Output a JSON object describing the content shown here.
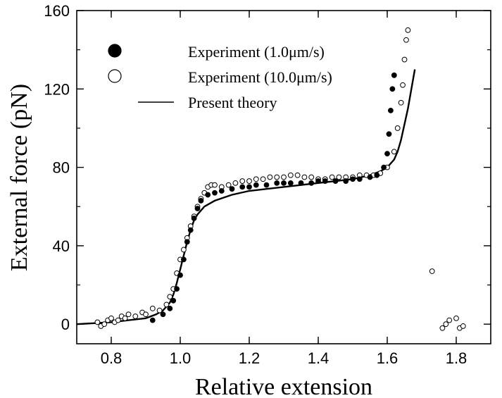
{
  "chart_data": {
    "type": "scatter",
    "xlabel": "Relative extension",
    "ylabel": "External force (pN)",
    "xlim": [
      0.7,
      1.9
    ],
    "ylim": [
      -10,
      160
    ],
    "x_ticks": [
      0.8,
      1.0,
      1.2,
      1.4,
      1.6,
      1.8
    ],
    "x_tick_labels": [
      "0.8",
      "1.0",
      "1.2",
      "1.4",
      "1.6",
      "1.8"
    ],
    "y_ticks": [
      0,
      40,
      80,
      120,
      160
    ],
    "y_tick_labels": [
      "0",
      "40",
      "80",
      "120",
      "160"
    ],
    "legend_position": "top-left",
    "series": [
      {
        "name": "Experiment (1.0μm/s)",
        "marker": "filled-circle",
        "color": "#000000",
        "x": [
          0.92,
          0.95,
          0.97,
          0.98,
          0.99,
          1.0,
          1.01,
          1.02,
          1.03,
          1.04,
          1.05,
          1.06,
          1.08,
          1.1,
          1.12,
          1.15,
          1.18,
          1.2,
          1.22,
          1.25,
          1.28,
          1.3,
          1.32,
          1.35,
          1.38,
          1.4,
          1.42,
          1.45,
          1.48,
          1.5,
          1.52,
          1.55,
          1.57,
          1.59,
          1.6,
          1.605,
          1.61,
          1.615,
          1.62
        ],
        "y": [
          2,
          5,
          8,
          12,
          18,
          25,
          33,
          42,
          48,
          54,
          59,
          63,
          66,
          67,
          68,
          69,
          70,
          70,
          71,
          71,
          72,
          72,
          72,
          72,
          72,
          73,
          73,
          73,
          73,
          74,
          74,
          75,
          76,
          80,
          87,
          97,
          109,
          120,
          127
        ]
      },
      {
        "name": "Experiment (10.0μm/s)",
        "marker": "open-circle",
        "color": "#000000",
        "x": [
          0.76,
          0.77,
          0.78,
          0.79,
          0.8,
          0.81,
          0.82,
          0.83,
          0.84,
          0.85,
          0.87,
          0.89,
          0.9,
          0.92,
          0.94,
          0.96,
          0.97,
          0.98,
          0.99,
          1.0,
          1.01,
          1.02,
          1.03,
          1.04,
          1.05,
          1.06,
          1.07,
          1.08,
          1.09,
          1.1,
          1.12,
          1.14,
          1.16,
          1.18,
          1.2,
          1.22,
          1.24,
          1.26,
          1.28,
          1.3,
          1.32,
          1.34,
          1.36,
          1.38,
          1.4,
          1.42,
          1.44,
          1.46,
          1.48,
          1.5,
          1.52,
          1.54,
          1.56,
          1.58,
          1.6,
          1.62,
          1.63,
          1.64,
          1.645,
          1.65,
          1.655,
          1.66,
          1.73,
          1.76,
          1.77,
          1.78,
          1.8,
          1.81,
          1.82
        ],
        "y": [
          1,
          -1,
          0,
          2,
          3,
          1,
          2,
          4,
          3,
          5,
          4,
          6,
          5,
          8,
          7,
          10,
          14,
          18,
          26,
          33,
          38,
          44,
          50,
          55,
          60,
          64,
          67,
          70,
          71,
          71,
          70,
          71,
          72,
          73,
          73,
          74,
          74,
          75,
          75,
          75,
          76,
          76,
          75,
          75,
          74,
          74,
          75,
          75,
          75,
          75,
          76,
          76,
          76,
          77,
          80,
          88,
          100,
          113,
          122,
          135,
          145,
          150,
          27,
          -2,
          0,
          2,
          3,
          -2,
          -1
        ]
      },
      {
        "name": "Present theory",
        "marker": "line",
        "color": "#000000",
        "x": [
          0.7,
          0.8,
          0.85,
          0.9,
          0.93,
          0.95,
          0.97,
          0.98,
          0.99,
          1.0,
          1.01,
          1.02,
          1.03,
          1.04,
          1.05,
          1.07,
          1.1,
          1.15,
          1.2,
          1.3,
          1.4,
          1.5,
          1.55,
          1.58,
          1.6,
          1.62,
          1.63,
          1.64,
          1.65,
          1.66,
          1.67,
          1.68
        ],
        "y": [
          0,
          1,
          2,
          3,
          5,
          7,
          11,
          15,
          21,
          28,
          35,
          42,
          48,
          53,
          56,
          60,
          63,
          66,
          68,
          70,
          72,
          74,
          76,
          78,
          80,
          84,
          88,
          94,
          102,
          110,
          120,
          130
        ]
      }
    ]
  }
}
